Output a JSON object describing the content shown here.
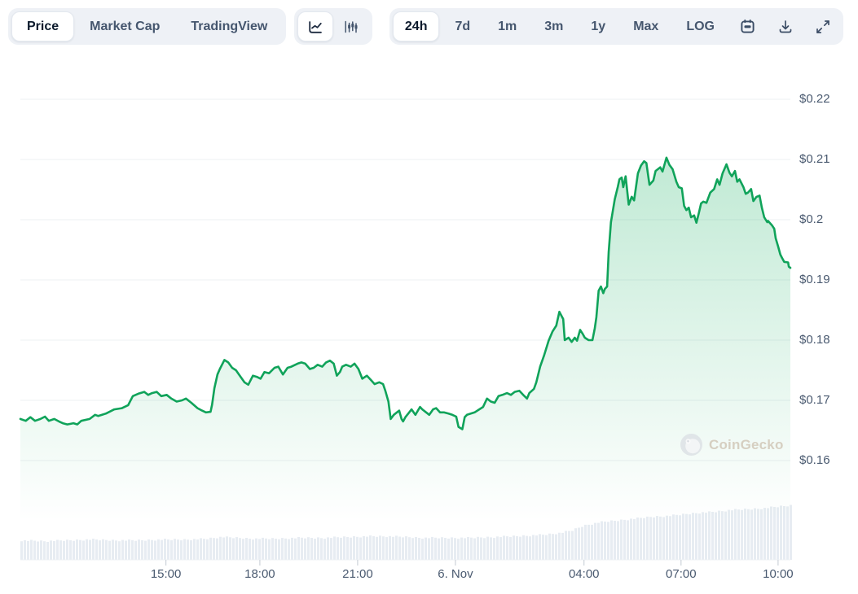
{
  "toolbar": {
    "metric_tabs": [
      "Price",
      "Market Cap",
      "TradingView"
    ],
    "metric_active": "Price",
    "chart_style_icons": [
      "line-chart",
      "candlestick-chart"
    ],
    "ranges": [
      "24h",
      "7d",
      "1m",
      "3m",
      "1y",
      "Max",
      "LOG"
    ],
    "range_active": "24h",
    "action_icons": [
      "calendar",
      "download",
      "expand"
    ]
  },
  "watermark": {
    "text": "CoinGecko"
  },
  "chart_data": {
    "type": "area",
    "title": "",
    "currency": "USD",
    "time_range": "24h",
    "y_axis": {
      "labels": [
        "$0.22",
        "$0.21",
        "$0.2",
        "$0.19",
        "$0.18",
        "$0.17",
        "$0.16"
      ],
      "values": [
        0.22,
        0.21,
        0.2,
        0.19,
        0.18,
        0.17,
        0.16
      ]
    },
    "x_axis": {
      "ticks": [
        {
          "label": "15:00",
          "f": 0.189
        },
        {
          "label": "18:00",
          "f": 0.311
        },
        {
          "label": "21:00",
          "f": 0.438
        },
        {
          "label": "6. Nov",
          "f": 0.565
        },
        {
          "label": "04:00",
          "f": 0.732
        },
        {
          "label": "07:00",
          "f": 0.858
        },
        {
          "label": "10:00",
          "f": 0.984
        }
      ]
    },
    "points": [
      [
        0.0,
        0.1669
      ],
      [
        0.007,
        0.1666
      ],
      [
        0.013,
        0.1672
      ],
      [
        0.019,
        0.1666
      ],
      [
        0.026,
        0.1669
      ],
      [
        0.032,
        0.1673
      ],
      [
        0.037,
        0.1666
      ],
      [
        0.044,
        0.1669
      ],
      [
        0.05,
        0.1665
      ],
      [
        0.055,
        0.1662
      ],
      [
        0.061,
        0.166
      ],
      [
        0.069,
        0.1662
      ],
      [
        0.074,
        0.166
      ],
      [
        0.079,
        0.1666
      ],
      [
        0.09,
        0.1669
      ],
      [
        0.097,
        0.1676
      ],
      [
        0.101,
        0.1674
      ],
      [
        0.111,
        0.1678
      ],
      [
        0.122,
        0.1685
      ],
      [
        0.132,
        0.1687
      ],
      [
        0.14,
        0.1692
      ],
      [
        0.146,
        0.1707
      ],
      [
        0.153,
        0.1711
      ],
      [
        0.161,
        0.1714
      ],
      [
        0.166,
        0.1709
      ],
      [
        0.171,
        0.1712
      ],
      [
        0.177,
        0.1714
      ],
      [
        0.183,
        0.1707
      ],
      [
        0.19,
        0.1709
      ],
      [
        0.196,
        0.1703
      ],
      [
        0.203,
        0.1698
      ],
      [
        0.21,
        0.17
      ],
      [
        0.215,
        0.1703
      ],
      [
        0.222,
        0.1696
      ],
      [
        0.23,
        0.1687
      ],
      [
        0.236,
        0.1683
      ],
      [
        0.241,
        0.168
      ],
      [
        0.247,
        0.1681
      ],
      [
        0.249,
        0.1693
      ],
      [
        0.252,
        0.172
      ],
      [
        0.256,
        0.1743
      ],
      [
        0.259,
        0.1752
      ],
      [
        0.265,
        0.1767
      ],
      [
        0.27,
        0.1763
      ],
      [
        0.275,
        0.1754
      ],
      [
        0.28,
        0.175
      ],
      [
        0.286,
        0.1739
      ],
      [
        0.291,
        0.173
      ],
      [
        0.296,
        0.1726
      ],
      [
        0.302,
        0.1741
      ],
      [
        0.307,
        0.1739
      ],
      [
        0.312,
        0.1736
      ],
      [
        0.317,
        0.1747
      ],
      [
        0.323,
        0.1745
      ],
      [
        0.33,
        0.1754
      ],
      [
        0.335,
        0.1756
      ],
      [
        0.341,
        0.1743
      ],
      [
        0.347,
        0.1754
      ],
      [
        0.352,
        0.1756
      ],
      [
        0.36,
        0.1761
      ],
      [
        0.365,
        0.1763
      ],
      [
        0.37,
        0.1761
      ],
      [
        0.376,
        0.1752
      ],
      [
        0.381,
        0.1754
      ],
      [
        0.386,
        0.1759
      ],
      [
        0.392,
        0.1756
      ],
      [
        0.397,
        0.1763
      ],
      [
        0.402,
        0.1766
      ],
      [
        0.407,
        0.1761
      ],
      [
        0.411,
        0.1741
      ],
      [
        0.415,
        0.1747
      ],
      [
        0.418,
        0.1756
      ],
      [
        0.423,
        0.1759
      ],
      [
        0.429,
        0.1756
      ],
      [
        0.434,
        0.1761
      ],
      [
        0.439,
        0.1752
      ],
      [
        0.444,
        0.1736
      ],
      [
        0.45,
        0.1741
      ],
      [
        0.455,
        0.1734
      ],
      [
        0.46,
        0.1727
      ],
      [
        0.466,
        0.173
      ],
      [
        0.471,
        0.1727
      ],
      [
        0.474,
        0.1716
      ],
      [
        0.478,
        0.1698
      ],
      [
        0.481,
        0.1669
      ],
      [
        0.485,
        0.1676
      ],
      [
        0.489,
        0.168
      ],
      [
        0.492,
        0.1683
      ],
      [
        0.495,
        0.1669
      ],
      [
        0.497,
        0.1665
      ],
      [
        0.5,
        0.1672
      ],
      [
        0.505,
        0.168
      ],
      [
        0.508,
        0.1685
      ],
      [
        0.513,
        0.1676
      ],
      [
        0.519,
        0.1689
      ],
      [
        0.522,
        0.1685
      ],
      [
        0.527,
        0.168
      ],
      [
        0.531,
        0.1676
      ],
      [
        0.536,
        0.1685
      ],
      [
        0.54,
        0.1687
      ],
      [
        0.545,
        0.168
      ],
      [
        0.55,
        0.168
      ],
      [
        0.556,
        0.1678
      ],
      [
        0.561,
        0.1676
      ],
      [
        0.566,
        0.1673
      ],
      [
        0.569,
        0.1656
      ],
      [
        0.574,
        0.1652
      ],
      [
        0.577,
        0.1672
      ],
      [
        0.58,
        0.1676
      ],
      [
        0.585,
        0.1678
      ],
      [
        0.59,
        0.168
      ],
      [
        0.596,
        0.1685
      ],
      [
        0.601,
        0.1689
      ],
      [
        0.606,
        0.1703
      ],
      [
        0.611,
        0.1698
      ],
      [
        0.616,
        0.1696
      ],
      [
        0.621,
        0.1707
      ],
      [
        0.626,
        0.1709
      ],
      [
        0.632,
        0.1712
      ],
      [
        0.637,
        0.1709
      ],
      [
        0.642,
        0.1714
      ],
      [
        0.648,
        0.1716
      ],
      [
        0.653,
        0.1709
      ],
      [
        0.658,
        0.1703
      ],
      [
        0.661,
        0.1712
      ],
      [
        0.667,
        0.1719
      ],
      [
        0.67,
        0.173
      ],
      [
        0.675,
        0.1756
      ],
      [
        0.68,
        0.1774
      ],
      [
        0.686,
        0.1799
      ],
      [
        0.691,
        0.1814
      ],
      [
        0.696,
        0.1824
      ],
      [
        0.7,
        0.1847
      ],
      [
        0.705,
        0.1835
      ],
      [
        0.707,
        0.18
      ],
      [
        0.712,
        0.1804
      ],
      [
        0.716,
        0.1797
      ],
      [
        0.72,
        0.1804
      ],
      [
        0.723,
        0.1799
      ],
      [
        0.727,
        0.1817
      ],
      [
        0.73,
        0.1811
      ],
      [
        0.733,
        0.1804
      ],
      [
        0.738,
        0.18
      ],
      [
        0.743,
        0.18
      ],
      [
        0.746,
        0.182
      ],
      [
        0.748,
        0.1838
      ],
      [
        0.751,
        0.1882
      ],
      [
        0.754,
        0.1889
      ],
      [
        0.757,
        0.1878
      ],
      [
        0.759,
        0.1885
      ],
      [
        0.762,
        0.1889
      ],
      [
        0.764,
        0.1946
      ],
      [
        0.767,
        0.1996
      ],
      [
        0.772,
        0.2034
      ],
      [
        0.776,
        0.2055
      ],
      [
        0.778,
        0.2067
      ],
      [
        0.781,
        0.207
      ],
      [
        0.783,
        0.2054
      ],
      [
        0.786,
        0.2072
      ],
      [
        0.79,
        0.2025
      ],
      [
        0.794,
        0.2038
      ],
      [
        0.797,
        0.2032
      ],
      [
        0.802,
        0.2077
      ],
      [
        0.806,
        0.209
      ],
      [
        0.81,
        0.2097
      ],
      [
        0.813,
        0.2094
      ],
      [
        0.817,
        0.2058
      ],
      [
        0.822,
        0.2065
      ],
      [
        0.825,
        0.2081
      ],
      [
        0.831,
        0.2087
      ],
      [
        0.834,
        0.208
      ],
      [
        0.839,
        0.2103
      ],
      [
        0.843,
        0.2091
      ],
      [
        0.847,
        0.2084
      ],
      [
        0.852,
        0.2063
      ],
      [
        0.855,
        0.2054
      ],
      [
        0.859,
        0.2052
      ],
      [
        0.862,
        0.2023
      ],
      [
        0.865,
        0.2016
      ],
      [
        0.868,
        0.202
      ],
      [
        0.871,
        0.2004
      ],
      [
        0.875,
        0.2007
      ],
      [
        0.878,
        0.1995
      ],
      [
        0.881,
        0.201
      ],
      [
        0.884,
        0.2027
      ],
      [
        0.887,
        0.203
      ],
      [
        0.891,
        0.2028
      ],
      [
        0.896,
        0.2045
      ],
      [
        0.901,
        0.2051
      ],
      [
        0.905,
        0.2067
      ],
      [
        0.908,
        0.2058
      ],
      [
        0.912,
        0.2077
      ],
      [
        0.917,
        0.2092
      ],
      [
        0.921,
        0.2078
      ],
      [
        0.924,
        0.2072
      ],
      [
        0.928,
        0.2081
      ],
      [
        0.931,
        0.2063
      ],
      [
        0.934,
        0.2067
      ],
      [
        0.939,
        0.2054
      ],
      [
        0.942,
        0.2043
      ],
      [
        0.945,
        0.2045
      ],
      [
        0.949,
        0.2051
      ],
      [
        0.952,
        0.2031
      ],
      [
        0.956,
        0.2038
      ],
      [
        0.96,
        0.204
      ],
      [
        0.963,
        0.202
      ],
      [
        0.966,
        0.2004
      ],
      [
        0.97,
        0.1996
      ],
      [
        0.971,
        0.1998
      ],
      [
        0.976,
        0.1991
      ],
      [
        0.979,
        0.1985
      ],
      [
        0.981,
        0.1969
      ],
      [
        0.984,
        0.1956
      ],
      [
        0.987,
        0.1942
      ],
      [
        0.989,
        0.1937
      ],
      [
        0.992,
        0.193
      ],
      [
        0.997,
        0.1929
      ],
      [
        0.998,
        0.1922
      ],
      [
        1.0,
        0.192
      ]
    ],
    "volume_profile": [
      [
        0,
        24
      ],
      [
        0.03,
        23
      ],
      [
        0.06,
        24
      ],
      [
        0.09,
        25
      ],
      [
        0.12,
        24
      ],
      [
        0.15,
        24
      ],
      [
        0.18,
        25
      ],
      [
        0.21,
        25
      ],
      [
        0.24,
        26
      ],
      [
        0.26,
        28
      ],
      [
        0.28,
        27
      ],
      [
        0.3,
        26
      ],
      [
        0.33,
        26
      ],
      [
        0.36,
        27
      ],
      [
        0.39,
        27
      ],
      [
        0.42,
        28
      ],
      [
        0.45,
        29
      ],
      [
        0.47,
        29
      ],
      [
        0.5,
        28
      ],
      [
        0.52,
        27
      ],
      [
        0.55,
        27
      ],
      [
        0.58,
        27
      ],
      [
        0.61,
        28
      ],
      [
        0.64,
        29
      ],
      [
        0.66,
        30
      ],
      [
        0.68,
        31
      ],
      [
        0.7,
        33
      ],
      [
        0.715,
        36
      ],
      [
        0.73,
        42
      ],
      [
        0.75,
        46
      ],
      [
        0.77,
        48
      ],
      [
        0.8,
        51
      ],
      [
        0.82,
        53
      ],
      [
        0.84,
        54
      ],
      [
        0.86,
        56
      ],
      [
        0.88,
        58
      ],
      [
        0.9,
        59
      ],
      [
        0.92,
        61
      ],
      [
        0.94,
        62
      ],
      [
        0.96,
        63
      ],
      [
        0.98,
        65
      ],
      [
        1.0,
        67
      ]
    ],
    "colors": {
      "line": "#10a35a",
      "area_top": "rgba(20,175,95,0.27)",
      "area_bottom": "rgba(20,175,95,0)",
      "volume": "#e7ecf2",
      "grid": "#edf0f3",
      "label": "#4a5a70",
      "tick": "#cdd3da"
    }
  }
}
